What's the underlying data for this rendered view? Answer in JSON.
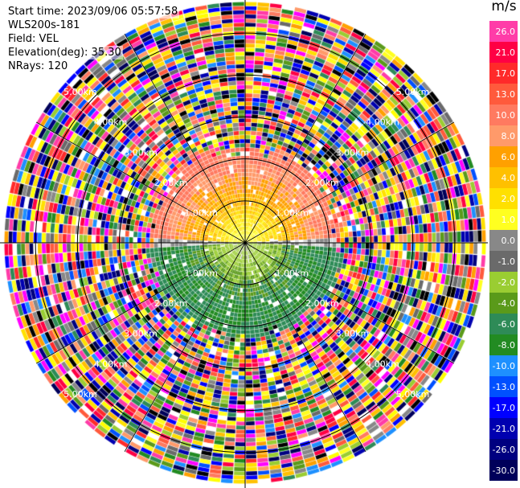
{
  "header": {
    "start_time": "Start time: 2023/09/06 05:57:58",
    "instrument": "WLS200s-181",
    "field": "Field: VEL",
    "elevation": "Elevation(deg): 35.30",
    "nrays": "NRays: 120"
  },
  "colorbar": {
    "unit": "m/s",
    "ticks": [
      "26.0",
      "21.0",
      "17.0",
      "13.0",
      "10.0",
      "8.0",
      "6.0",
      "4.0",
      "2.0",
      "1.0",
      "0.0",
      "-1.0",
      "-2.0",
      "-4.0",
      "-6.0",
      "-8.0",
      "-10.0",
      "-13.0",
      "-17.0",
      "-21.0",
      "-26.0",
      "-30.0"
    ],
    "colors": [
      "#ff3ca8",
      "#ff0044",
      "#ff2a2a",
      "#ff5a3c",
      "#ff7a60",
      "#ff9a6a",
      "#ffa000",
      "#ffc000",
      "#ffe000",
      "#ffff20",
      "#888888",
      "#6a6a6a",
      "#9acd32",
      "#5a9a1a",
      "#2e8b57",
      "#228b22",
      "#1e90ff",
      "#0050ff",
      "#0000ff",
      "#0000b0",
      "#000080",
      "#00005a"
    ]
  },
  "chart_data": {
    "type": "heatmap",
    "title": "",
    "field": "VEL",
    "units": "m/s",
    "elevation_deg": 35.3,
    "nrays": 120,
    "range_rings_km": [
      1.0,
      2.0,
      3.0,
      4.0,
      5.0
    ],
    "ring_labels": [
      "1.00km",
      "2.00km",
      "3.00km",
      "4.00km",
      "5.00km"
    ],
    "color_scale": [
      -30.0,
      -26.0,
      -21.0,
      -17.0,
      -13.0,
      -10.0,
      -8.0,
      -6.0,
      -4.0,
      -2.0,
      -1.0,
      0.0,
      1.0,
      2.0,
      4.0,
      6.0,
      8.0,
      10.0,
      13.0,
      17.0,
      21.0,
      26.0
    ],
    "pattern": {
      "north_half_near_km": "positive velocities 1-8 m/s (yellow to orange)",
      "south_half_near_km": "negative velocities -1 to -8 m/s (gray to green)",
      "beyond_about_2.3km": "noise, full color range"
    }
  }
}
